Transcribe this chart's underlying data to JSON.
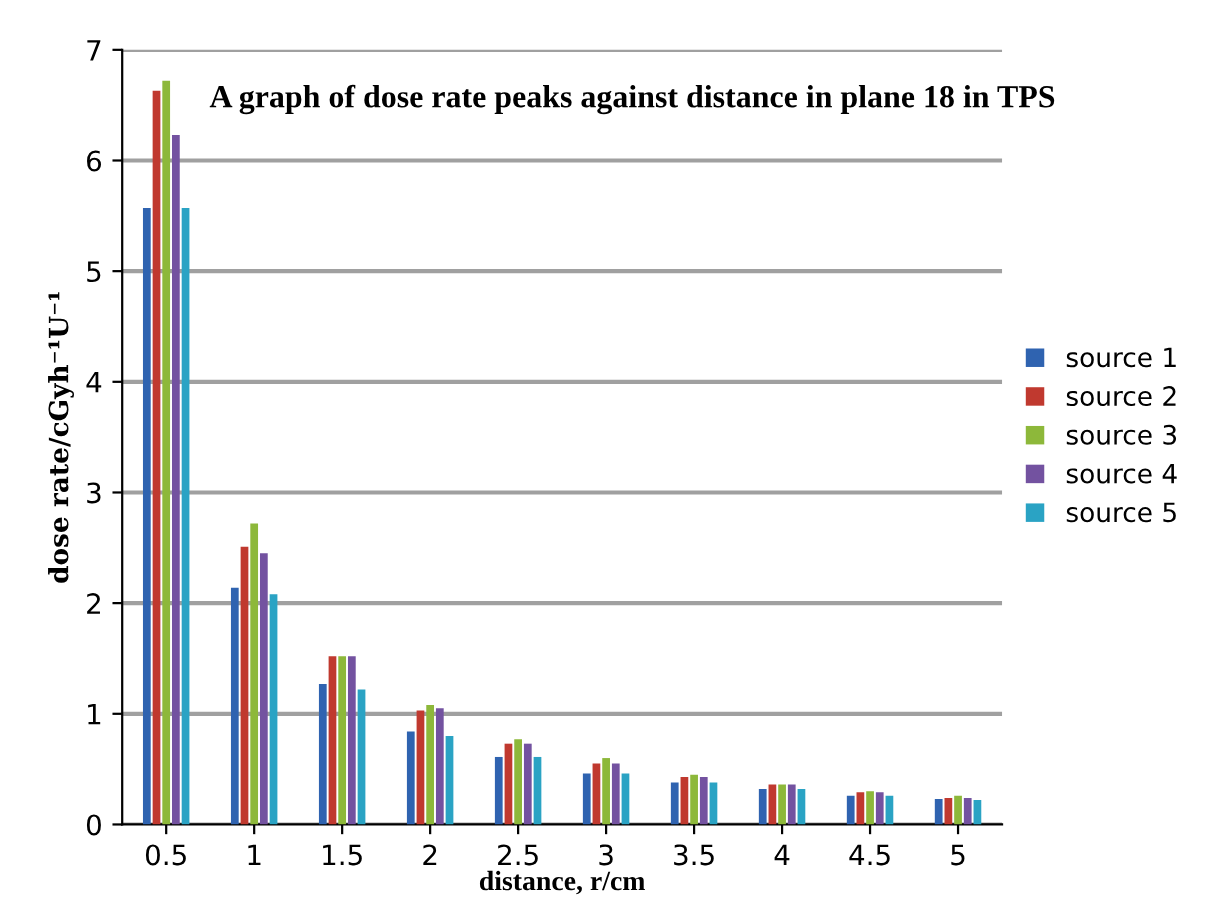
{
  "chart_data": {
    "type": "bar",
    "title": "A graph of dose rate peaks against distance in plane 18 in TPS",
    "xlabel": "distance, r/cm",
    "ylabel": "dose rate/cGyh⁻¹U⁻¹",
    "categories": [
      "0.5",
      "1",
      "1.5",
      "2",
      "2.5",
      "3",
      "3.5",
      "4",
      "4.5",
      "5"
    ],
    "series": [
      {
        "name": "source 1",
        "color": "#2f63b0",
        "values": [
          5.57,
          2.14,
          1.27,
          0.84,
          0.61,
          0.46,
          0.38,
          0.32,
          0.26,
          0.23
        ]
      },
      {
        "name": "source 2",
        "color": "#c0392f",
        "values": [
          6.63,
          2.51,
          1.52,
          1.03,
          0.73,
          0.55,
          0.43,
          0.36,
          0.29,
          0.24
        ]
      },
      {
        "name": "source 3",
        "color": "#8db83a",
        "values": [
          6.72,
          2.72,
          1.52,
          1.08,
          0.77,
          0.6,
          0.45,
          0.36,
          0.3,
          0.26
        ]
      },
      {
        "name": "source 4",
        "color": "#7352a0",
        "values": [
          6.23,
          2.45,
          1.52,
          1.05,
          0.73,
          0.55,
          0.43,
          0.36,
          0.29,
          0.24
        ]
      },
      {
        "name": "source 5",
        "color": "#2aa3c4",
        "values": [
          5.57,
          2.08,
          1.22,
          0.8,
          0.61,
          0.46,
          0.38,
          0.32,
          0.26,
          0.22
        ]
      }
    ],
    "ylim": [
      0,
      7
    ],
    "yticks": [
      0,
      1,
      2,
      3,
      4,
      5,
      6,
      7
    ],
    "grid": "y",
    "legend": "right"
  }
}
